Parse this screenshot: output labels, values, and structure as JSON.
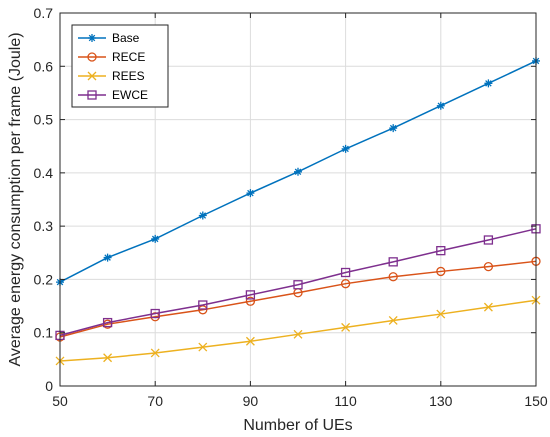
{
  "chart_data": {
    "type": "line",
    "xlabel": "Number of UEs",
    "ylabel": "Average energy consumption per frame (Joule)",
    "xlim": [
      50,
      150
    ],
    "ylim": [
      0,
      0.7
    ],
    "x_ticks": [
      50,
      70,
      90,
      110,
      130,
      150
    ],
    "y_ticks": [
      0,
      0.1,
      0.2,
      0.3,
      0.4,
      0.5,
      0.6,
      0.7
    ],
    "y_tick_labels": [
      "0",
      "0.1",
      "0.2",
      "0.3",
      "0.4",
      "0.5",
      "0.6",
      "0.7"
    ],
    "grid": true,
    "legend_position": "top-left",
    "x": [
      50,
      60,
      70,
      80,
      90,
      100,
      110,
      120,
      130,
      140,
      150
    ],
    "series": [
      {
        "name": "Base",
        "color": "#0072BD",
        "marker": "asterisk",
        "values": [
          0.195,
          0.241,
          0.276,
          0.32,
          0.362,
          0.402,
          0.445,
          0.484,
          0.526,
          0.568,
          0.61
        ]
      },
      {
        "name": "RECE",
        "color": "#D95319",
        "marker": "circle",
        "values": [
          0.092,
          0.116,
          0.13,
          0.143,
          0.159,
          0.175,
          0.192,
          0.205,
          0.215,
          0.224,
          0.234
        ]
      },
      {
        "name": "REES",
        "color": "#EDB120",
        "marker": "x",
        "values": [
          0.047,
          0.053,
          0.062,
          0.073,
          0.084,
          0.097,
          0.11,
          0.123,
          0.135,
          0.148,
          0.161
        ]
      },
      {
        "name": "EWCE",
        "color": "#7E2F8E",
        "marker": "square",
        "values": [
          0.095,
          0.119,
          0.136,
          0.152,
          0.171,
          0.19,
          0.213,
          0.233,
          0.254,
          0.274,
          0.295
        ]
      }
    ]
  }
}
